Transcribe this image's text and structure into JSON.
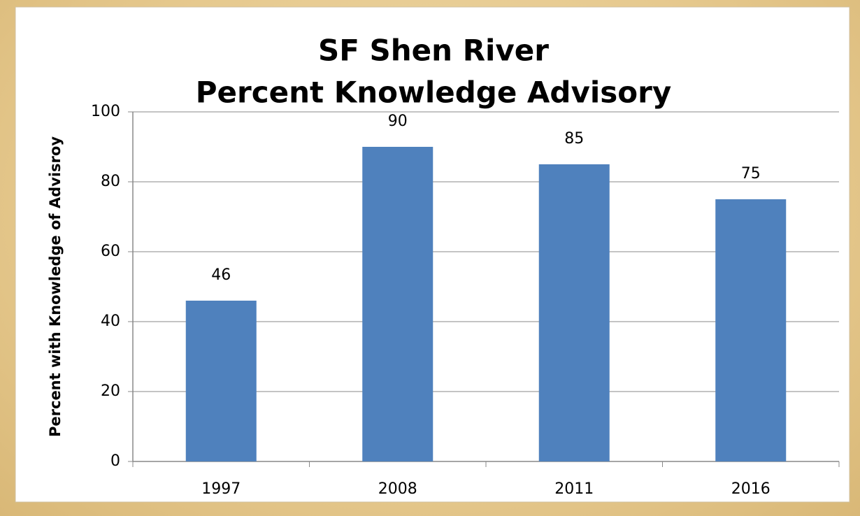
{
  "chart_data": {
    "type": "bar",
    "title": [
      "SF Shen River",
      "Percent Knowledge Advisory"
    ],
    "y_label": "Percent with Knowledge of Advisroy",
    "categories": [
      "1997",
      "2008",
      "2011",
      "2016"
    ],
    "values": [
      46,
      90,
      85,
      75
    ],
    "color": "#4f81bd",
    "ylim": [
      0,
      100
    ],
    "yticks": [
      0,
      20,
      40,
      60,
      80,
      100
    ],
    "grid": true,
    "data_labels": true
  }
}
